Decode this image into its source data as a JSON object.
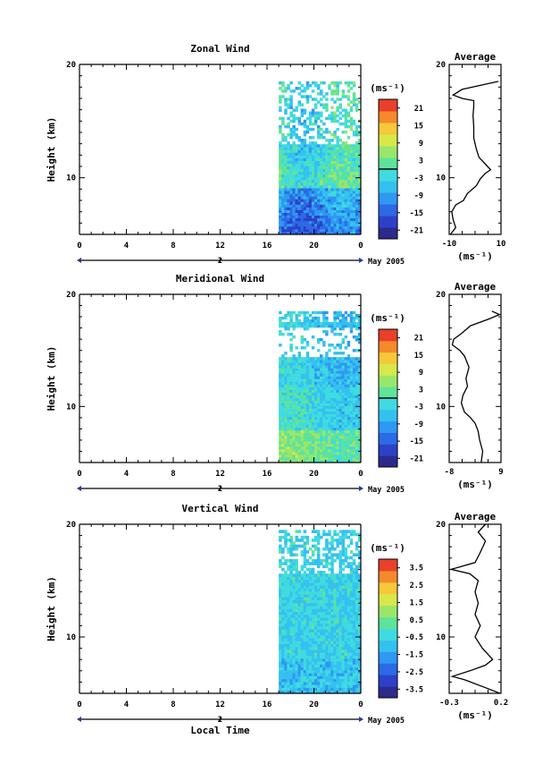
{
  "chart_data": [
    {
      "type": "heatmap",
      "title": "Zonal Wind",
      "ylabel": "Height (km)",
      "xlim": [
        0,
        24
      ],
      "ylim": [
        5,
        20
      ],
      "x_ticks": [
        "0",
        "4",
        "8",
        "12",
        "16",
        "20",
        "0"
      ],
      "y_ticks": [
        "20",
        "10"
      ],
      "date_label": "2",
      "date_caption": "May 2005",
      "data_x_range": [
        17,
        24
      ],
      "data_y_range": [
        5,
        18.5
      ],
      "colorbar": {
        "unit": "(ms⁻¹)",
        "range": [
          -24,
          24
        ],
        "tick_labels": [
          "21",
          "15",
          "9",
          "3",
          "-3",
          "-9",
          "-15",
          "-21"
        ],
        "tick_values": [
          21,
          15,
          9,
          3,
          -3,
          -9,
          -15,
          -21
        ],
        "zero_line": true
      },
      "average_profile": {
        "title": "Average",
        "xlabel": "(ms⁻¹)",
        "xlim": [
          -10,
          10
        ],
        "x_ticks": [
          "-10",
          "10"
        ],
        "ylim": [
          5,
          20
        ],
        "y_ticks": [
          "20",
          "10"
        ],
        "points": [
          [
            -9.5,
            5.0
          ],
          [
            -7.5,
            5.6
          ],
          [
            -8.5,
            6.3
          ],
          [
            -9.0,
            7.0
          ],
          [
            -7.5,
            7.6
          ],
          [
            -4.5,
            8.0
          ],
          [
            -3.0,
            8.6
          ],
          [
            0.5,
            9.3
          ],
          [
            2.0,
            9.9
          ],
          [
            4.0,
            10.4
          ],
          [
            6.0,
            10.7
          ],
          [
            4.0,
            11.2
          ],
          [
            1.5,
            11.8
          ],
          [
            0.5,
            12.5
          ],
          [
            -0.5,
            13.5
          ],
          [
            -0.5,
            14.5
          ],
          [
            -0.8,
            15.5
          ],
          [
            -0.5,
            16.3
          ],
          [
            -0.5,
            16.8
          ],
          [
            -5.0,
            17.0
          ],
          [
            -8.5,
            17.3
          ],
          [
            -5.0,
            17.8
          ],
          [
            5.0,
            18.3
          ],
          [
            9.0,
            18.5
          ]
        ]
      }
    },
    {
      "type": "heatmap",
      "title": "Meridional Wind",
      "ylabel": "Height (km)",
      "xlim": [
        0,
        24
      ],
      "ylim": [
        5,
        20
      ],
      "x_ticks": [
        "0",
        "4",
        "8",
        "12",
        "16",
        "20",
        "0"
      ],
      "y_ticks": [
        "20",
        "10"
      ],
      "date_label": "2",
      "date_caption": "May 2005",
      "data_x_range": [
        17,
        24
      ],
      "data_y_range": [
        5,
        18.5
      ],
      "colorbar": {
        "unit": "(ms⁻¹)",
        "range": [
          -24,
          24
        ],
        "tick_labels": [
          "21",
          "15",
          "9",
          "3",
          "-3",
          "-9",
          "-15",
          "-21"
        ],
        "tick_values": [
          21,
          15,
          9,
          3,
          -3,
          -9,
          -15,
          -21
        ],
        "zero_line": true
      },
      "average_profile": {
        "title": "Average",
        "xlabel": "(ms⁻¹)",
        "xlim": [
          -8,
          9
        ],
        "x_ticks": [
          "-8",
          "9"
        ],
        "ylim": [
          5,
          20
        ],
        "y_ticks": [
          "20",
          "10"
        ],
        "points": [
          [
            2.5,
            5.0
          ],
          [
            3.0,
            6.0
          ],
          [
            2.0,
            7.0
          ],
          [
            1.5,
            7.8
          ],
          [
            0.5,
            8.5
          ],
          [
            -1.0,
            9.0
          ],
          [
            -3.0,
            9.5
          ],
          [
            -4.0,
            10.3
          ],
          [
            -3.5,
            11.0
          ],
          [
            -2.0,
            11.8
          ],
          [
            -2.5,
            12.5
          ],
          [
            -1.5,
            13.5
          ],
          [
            -3.0,
            14.5
          ],
          [
            -4.5,
            15.0
          ],
          [
            -7.0,
            15.5
          ],
          [
            -6.5,
            16.0
          ],
          [
            -4.0,
            16.5
          ],
          [
            -1.0,
            17.2
          ],
          [
            5.0,
            17.8
          ],
          [
            8.5,
            18.2
          ],
          [
            6.0,
            18.5
          ]
        ]
      }
    },
    {
      "type": "heatmap",
      "title": "Vertical Wind",
      "ylabel": "Height (km)",
      "xlabel": "Local Time",
      "xlim": [
        0,
        24
      ],
      "ylim": [
        5,
        20
      ],
      "x_ticks": [
        "0",
        "4",
        "8",
        "12",
        "16",
        "20",
        "0"
      ],
      "y_ticks": [
        "20",
        "10"
      ],
      "date_label": "2",
      "date_caption": "May 2005",
      "data_x_range": [
        17,
        24
      ],
      "data_y_range": [
        5,
        19.5
      ],
      "colorbar": {
        "unit": "(ms⁻¹)",
        "range": [
          -4,
          4
        ],
        "tick_labels": [
          "3.5",
          "2.5",
          "1.5",
          "0.5",
          "-0.5",
          "-1.5",
          "-2.5",
          "-3.5"
        ],
        "tick_values": [
          3.5,
          2.5,
          1.5,
          0.5,
          -0.5,
          -1.5,
          -2.5,
          -3.5
        ],
        "zero_line": false
      },
      "average_profile": {
        "title": "Average",
        "xlabel": "(ms⁻¹)",
        "xlim": [
          -0.3,
          0.2
        ],
        "x_ticks": [
          "-0.3",
          "0.2"
        ],
        "ylim": [
          5,
          20
        ],
        "y_ticks": [
          "20",
          "10"
        ],
        "points": [
          [
            0.19,
            5.0
          ],
          [
            0.05,
            5.5
          ],
          [
            -0.15,
            6.2
          ],
          [
            -0.27,
            6.5
          ],
          [
            -0.1,
            7.0
          ],
          [
            0.05,
            7.5
          ],
          [
            0.12,
            8.0
          ],
          [
            0.02,
            9.0
          ],
          [
            -0.05,
            10.0
          ],
          [
            0.0,
            11.0
          ],
          [
            -0.05,
            12.0
          ],
          [
            -0.02,
            13.0
          ],
          [
            -0.05,
            14.0
          ],
          [
            -0.02,
            15.0
          ],
          [
            -0.1,
            15.6
          ],
          [
            -0.28,
            16.0
          ],
          [
            -0.05,
            16.6
          ],
          [
            0.0,
            17.5
          ],
          [
            0.05,
            18.5
          ],
          [
            -0.02,
            19.3
          ],
          [
            0.05,
            20.0
          ]
        ]
      }
    }
  ]
}
